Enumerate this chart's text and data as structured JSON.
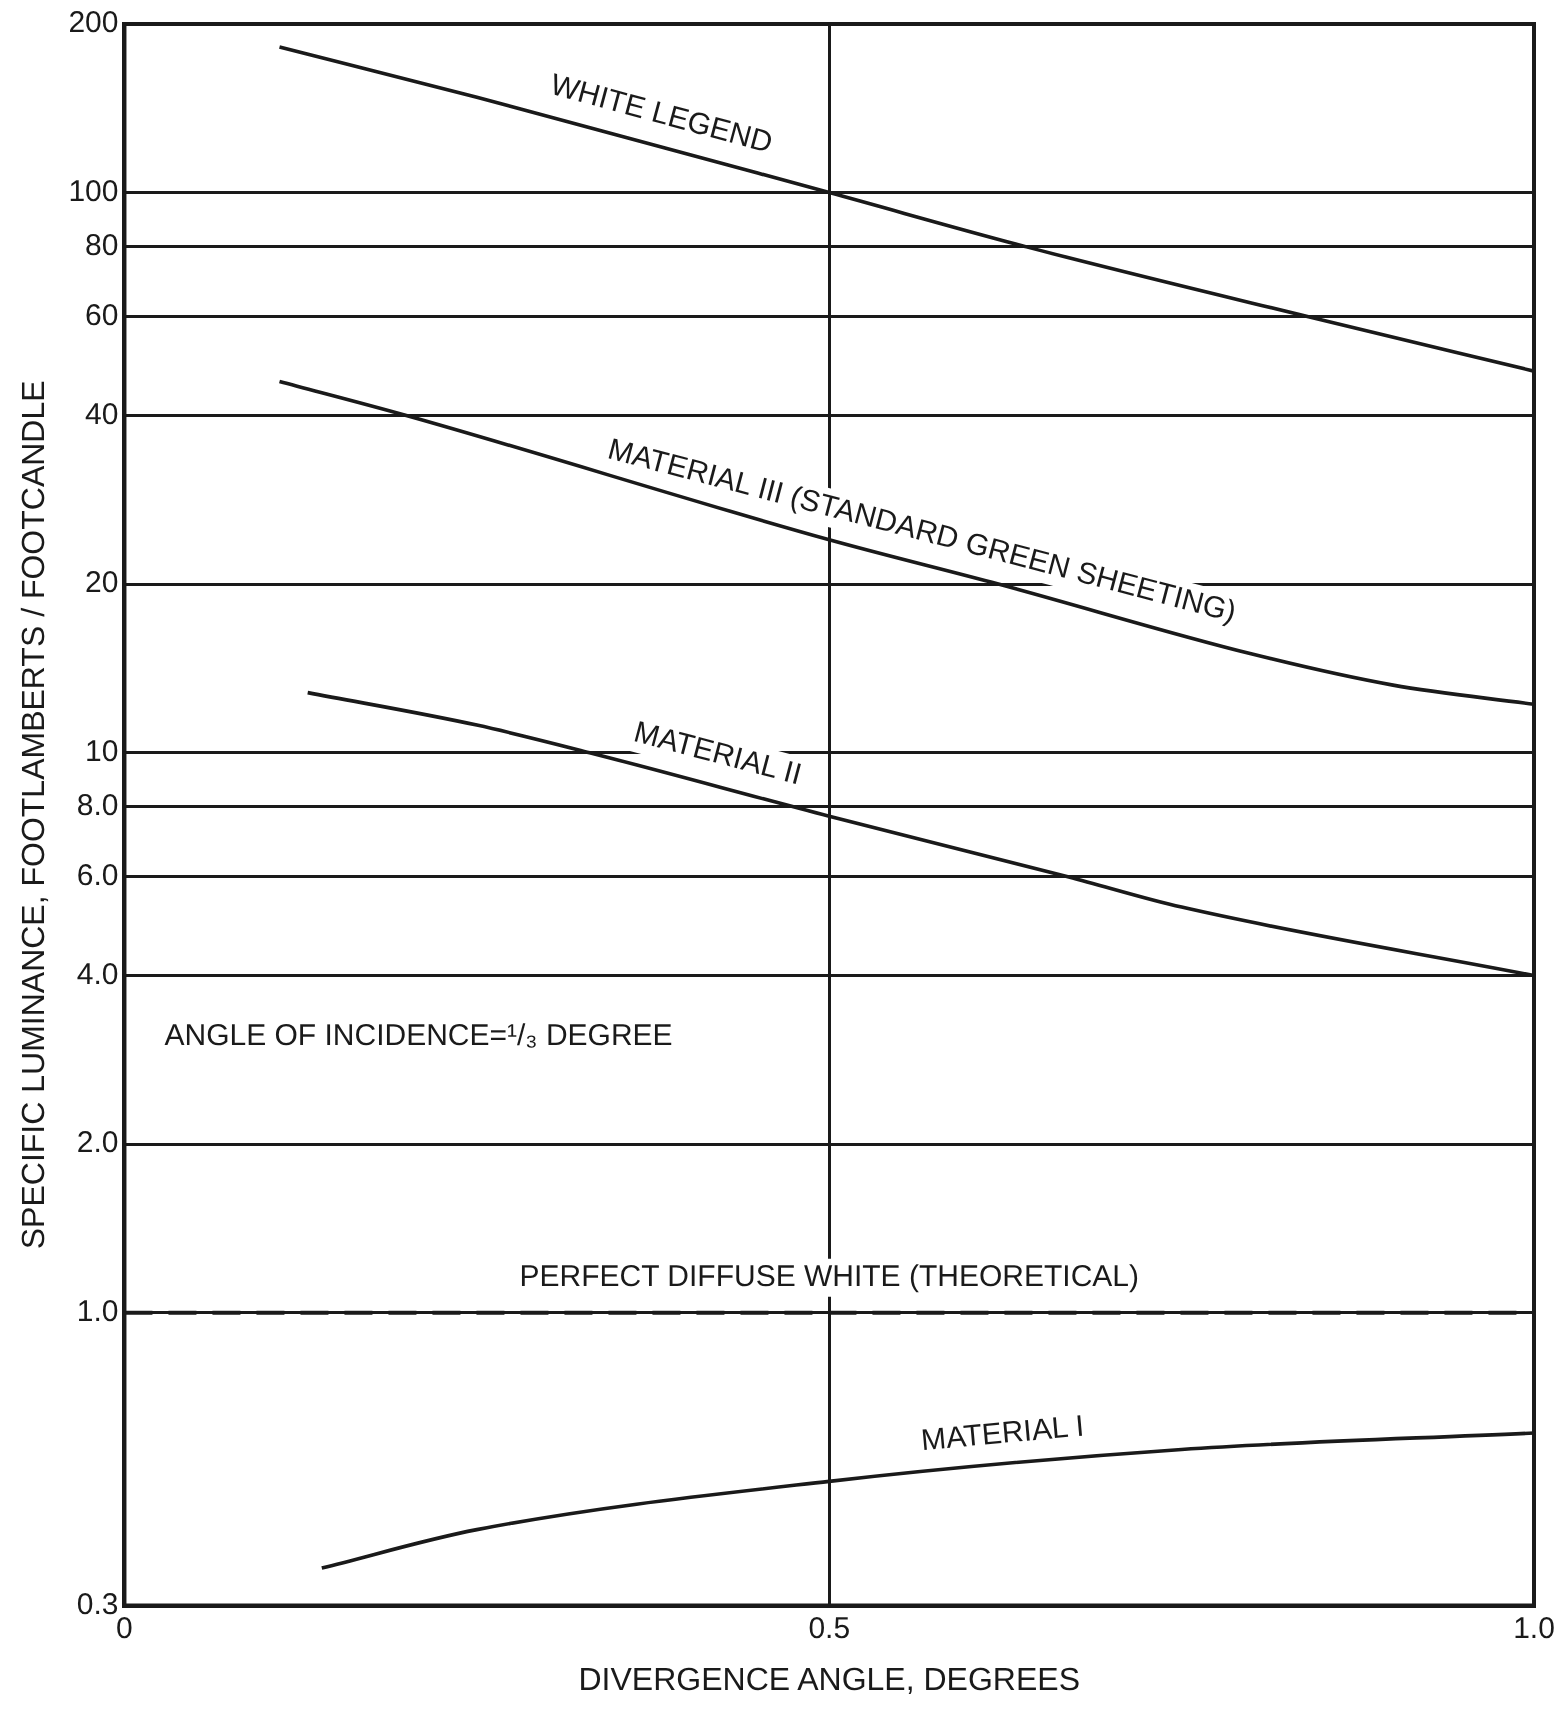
{
  "chart_data": {
    "type": "line",
    "xlabel": "DIVERGENCE ANGLE, DEGREES",
    "ylabel": "SPECIFIC LUMINANCE, FOOTLAMBERTS / FOOTCANDLE",
    "log": "y",
    "xlim": [
      0,
      1
    ],
    "xticks": [
      0,
      0.5,
      {
        "value": 1,
        "label": "1.0"
      }
    ],
    "ylim": [
      0.3,
      200
    ],
    "yticks": [
      0.3,
      {
        "value": 1,
        "label": "1.0"
      },
      {
        "value": 2,
        "label": "2.0"
      },
      {
        "value": 4,
        "label": "4.0"
      },
      {
        "value": 6,
        "label": "6.0"
      },
      {
        "value": 8,
        "label": "8.0"
      },
      10,
      20,
      40,
      60,
      80,
      100,
      200
    ],
    "grid": true,
    "legend": false,
    "marker": "none",
    "series": [
      {
        "name": "WHITE LEGEND",
        "color": "#1a1a1a",
        "x": [
          0.11,
          0.25,
          0.5,
          0.64,
          0.84,
          1.0
        ],
        "values": [
          182,
          148,
          100,
          80,
          60,
          48
        ]
      },
      {
        "name": "MATERIAL III (STANDARD GREEN SHEETING)",
        "color": "#1a1a1a",
        "x": [
          0.11,
          0.2,
          0.5,
          0.62,
          0.8,
          0.9,
          1.0
        ],
        "values": [
          46,
          40,
          24,
          20,
          15,
          13.2,
          12.2
        ]
      },
      {
        "name": "MATERIAL II",
        "color": "#1a1a1a",
        "x": [
          0.13,
          0.25,
          0.33,
          0.5,
          0.67,
          0.75,
          1.0
        ],
        "values": [
          12.8,
          11.2,
          10,
          7.7,
          6,
          5.3,
          4.0
        ]
      },
      {
        "name": "MATERIAL I",
        "color": "#1a1a1a",
        "x": [
          0.14,
          0.25,
          0.5,
          0.75,
          1.0
        ],
        "values": [
          0.35,
          0.41,
          0.5,
          0.57,
          0.61
        ]
      }
    ],
    "ref_lines": [
      {
        "axis": "y",
        "value": 1,
        "label": "PERFECT DIFFUSE WHITE (THEORETICAL)",
        "color": "#1a1a1a",
        "line_style": "dashed"
      }
    ],
    "annotations": [
      "ANGLE OF INCIDENCE=¹/₃ DEGREE"
    ]
  }
}
